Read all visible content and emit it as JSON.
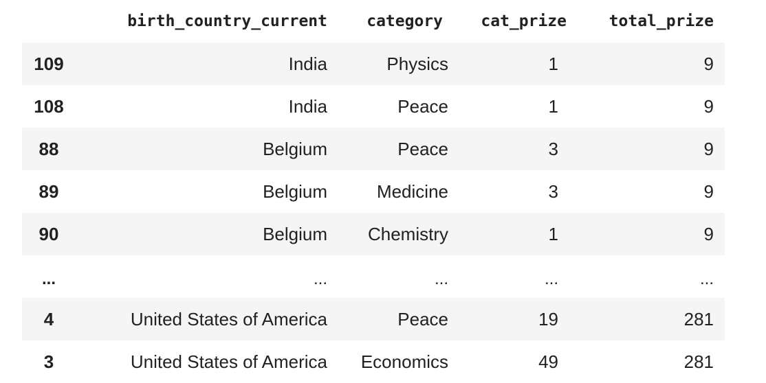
{
  "table": {
    "columns": [
      "",
      "birth_country_current",
      "category",
      "cat_prize",
      "total_prize"
    ],
    "rows": [
      {
        "index": "109",
        "birth_country_current": "India",
        "category": "Physics",
        "cat_prize": "1",
        "total_prize": "9"
      },
      {
        "index": "108",
        "birth_country_current": "India",
        "category": "Peace",
        "cat_prize": "1",
        "total_prize": "9"
      },
      {
        "index": "88",
        "birth_country_current": "Belgium",
        "category": "Peace",
        "cat_prize": "3",
        "total_prize": "9"
      },
      {
        "index": "89",
        "birth_country_current": "Belgium",
        "category": "Medicine",
        "cat_prize": "3",
        "total_prize": "9"
      },
      {
        "index": "90",
        "birth_country_current": "Belgium",
        "category": "Chemistry",
        "cat_prize": "1",
        "total_prize": "9"
      },
      {
        "index": "...",
        "birth_country_current": "...",
        "category": "...",
        "cat_prize": "...",
        "total_prize": "..."
      },
      {
        "index": "4",
        "birth_country_current": "United States of America",
        "category": "Peace",
        "cat_prize": "19",
        "total_prize": "281"
      },
      {
        "index": "3",
        "birth_country_current": "United States of America",
        "category": "Economics",
        "cat_prize": "49",
        "total_prize": "281"
      }
    ]
  }
}
